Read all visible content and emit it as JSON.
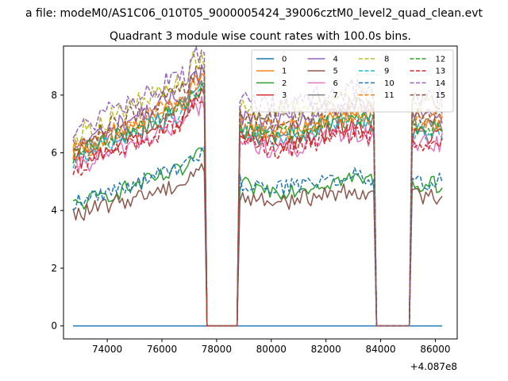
{
  "figure": {
    "suptitle": "a file: modeM0/AS1C06_010T05_9000005424_39006cztM0_level2_quad_clean.evt",
    "title": "Quadrant 3 module wise count rates with 100.0s bins."
  },
  "chart_data": {
    "type": "line",
    "title": "Quadrant 3 module wise count rates with 100.0s bins.",
    "xlabel": "",
    "ylabel": "",
    "x_offset_text": "+4.087e8",
    "xlim": [
      72400,
      86800
    ],
    "ylim": [
      -0.45,
      9.7
    ],
    "x_ticks": [
      74000,
      76000,
      78000,
      80000,
      82000,
      84000,
      86000
    ],
    "x_tick_labels": [
      "74000",
      "76000",
      "78000",
      "80000",
      "82000",
      "84000",
      "86000"
    ],
    "y_ticks": [
      0,
      2,
      4,
      6,
      8
    ],
    "y_tick_labels": [
      "0",
      "2",
      "4",
      "6",
      "8"
    ],
    "grid": false,
    "legend_position": "upper right",
    "legend_columns": 4,
    "x_start": 72750,
    "bin_size": 100,
    "segments": [
      [
        72750,
        77550
      ],
      [
        78850,
        83750
      ],
      [
        85150,
        86250
      ]
    ],
    "series": [
      {
        "name": "0",
        "color": "#1f77b4",
        "dash": "solid",
        "level": 0.0,
        "noise": 0.0
      },
      {
        "name": "1",
        "color": "#ff7f0e",
        "dash": "solid",
        "level": 7.0,
        "noise": 0.35
      },
      {
        "name": "2",
        "color": "#2ca02c",
        "dash": "solid",
        "level": 4.9,
        "noise": 0.3
      },
      {
        "name": "3",
        "color": "#d62728",
        "dash": "solid",
        "level": 6.6,
        "noise": 0.35
      },
      {
        "name": "4",
        "color": "#9467bd",
        "dash": "solid",
        "level": 7.3,
        "noise": 0.35
      },
      {
        "name": "5",
        "color": "#8c564b",
        "dash": "solid",
        "level": 4.5,
        "noise": 0.3
      },
      {
        "name": "6",
        "color": "#e377c2",
        "dash": "solid",
        "level": 6.4,
        "noise": 0.4
      },
      {
        "name": "7",
        "color": "#7f7f7f",
        "dash": "solid",
        "level": 6.9,
        "noise": 0.35
      },
      {
        "name": "8",
        "color": "#bcbd22",
        "dash": "dashed",
        "level": 7.7,
        "noise": 0.4
      },
      {
        "name": "9",
        "color": "#17becf",
        "dash": "dashed",
        "level": 6.8,
        "noise": 0.35
      },
      {
        "name": "10",
        "color": "#1f77b4",
        "dash": "dashed",
        "level": 5.0,
        "noise": 0.3
      },
      {
        "name": "11",
        "color": "#ff7f0e",
        "dash": "dashed",
        "level": 7.1,
        "noise": 0.35
      },
      {
        "name": "12",
        "color": "#2ca02c",
        "dash": "dashed",
        "level": 6.9,
        "noise": 0.35
      },
      {
        "name": "13",
        "color": "#d62728",
        "dash": "dashed",
        "level": 6.4,
        "noise": 0.35
      },
      {
        "name": "14",
        "color": "#9467bd",
        "dash": "dashed",
        "level": 7.9,
        "noise": 0.4
      },
      {
        "name": "15",
        "color": "#8c564b",
        "dash": "dashed",
        "level": 7.4,
        "noise": 0.35
      }
    ]
  }
}
